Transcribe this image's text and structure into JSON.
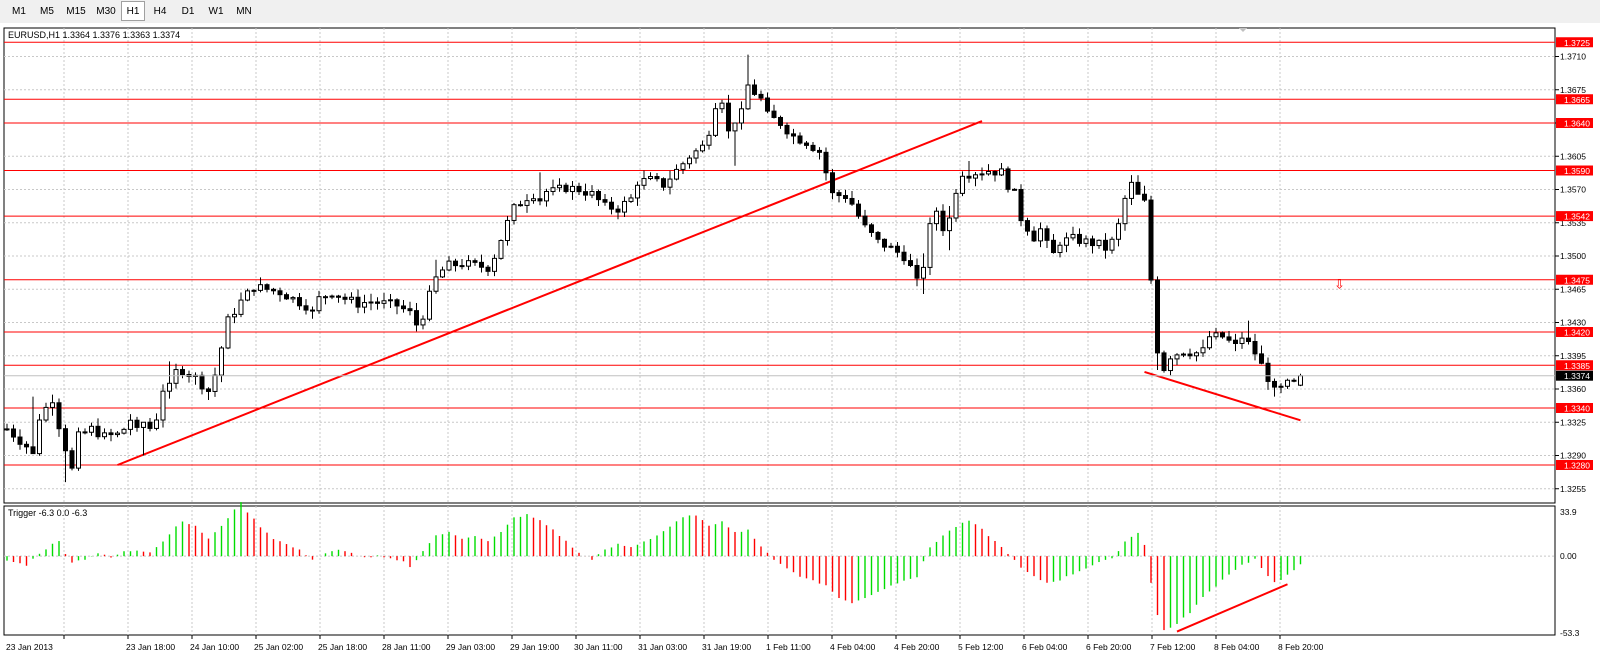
{
  "toolbar": {
    "timeframes": [
      {
        "label": "M1",
        "active": false
      },
      {
        "label": "M5",
        "active": false
      },
      {
        "label": "M15",
        "active": false
      },
      {
        "label": "M30",
        "active": false
      },
      {
        "label": "H1",
        "active": true
      },
      {
        "label": "H4",
        "active": false
      },
      {
        "label": "D1",
        "active": false
      },
      {
        "label": "W1",
        "active": false
      },
      {
        "label": "MN",
        "active": false
      }
    ]
  },
  "chart_data": {
    "type": "candlestick",
    "title": "EURUSD,H1  1.3364 1.3376 1.3363 1.3374",
    "symbol": "EURUSD",
    "timeframe": "H1",
    "ohlc_current": {
      "open": 1.3364,
      "high": 1.3376,
      "low": 1.3363,
      "close": 1.3374
    },
    "current_price": "1.3374",
    "ylim": [
      1.324,
      1.374
    ],
    "price_ticks": [
      "1.3710",
      "1.3675",
      "1.3640",
      "1.3605",
      "1.3570",
      "1.3535",
      "1.3500",
      "1.3465",
      "1.3430",
      "1.3395",
      "1.3360",
      "1.3325",
      "1.3290",
      "1.3255"
    ],
    "x_ticks": [
      "23 Jan 2013",
      "23 Jan 18:00",
      "24 Jan 10:00",
      "25 Jan 02:00",
      "25 Jan 18:00",
      "28 Jan 11:00",
      "29 Jan 03:00",
      "29 Jan 19:00",
      "30 Jan 11:00",
      "31 Jan 03:00",
      "31 Jan 19:00",
      "1 Feb 11:00",
      "4 Feb 04:00",
      "4 Feb 20:00",
      "5 Feb 12:00",
      "6 Feb 04:00",
      "6 Feb 20:00",
      "7 Feb 12:00",
      "8 Feb 04:00",
      "8 Feb 20:00"
    ],
    "price_path": [
      [
        0,
        1.3318
      ],
      [
        3,
        1.33
      ],
      [
        5,
        1.333
      ],
      [
        7,
        1.335
      ],
      [
        8,
        1.3322
      ],
      [
        9,
        1.328
      ],
      [
        10,
        1.3275
      ],
      [
        11,
        1.331
      ],
      [
        13,
        1.3318
      ],
      [
        15,
        1.331
      ],
      [
        17,
        1.3312
      ],
      [
        18,
        1.3318
      ],
      [
        19,
        1.3328
      ],
      [
        20,
        1.3315
      ],
      [
        21,
        1.3308
      ],
      [
        23,
        1.333
      ],
      [
        24,
        1.336
      ],
      [
        25,
        1.3376
      ],
      [
        27,
        1.338
      ],
      [
        29,
        1.3372
      ],
      [
        30,
        1.3365
      ],
      [
        31,
        1.3358
      ],
      [
        32,
        1.3375
      ],
      [
        34,
        1.3432
      ],
      [
        36,
        1.3452
      ],
      [
        38,
        1.3468
      ],
      [
        40,
        1.3465
      ],
      [
        42,
        1.3462
      ],
      [
        44,
        1.3455
      ],
      [
        46,
        1.3448
      ],
      [
        47,
        1.344
      ],
      [
        48,
        1.3455
      ],
      [
        50,
        1.3462
      ],
      [
        52,
        1.3455
      ],
      [
        54,
        1.345
      ],
      [
        56,
        1.3452
      ],
      [
        58,
        1.345
      ],
      [
        60,
        1.3448
      ],
      [
        62,
        1.344
      ],
      [
        63,
        1.3428
      ],
      [
        64,
        1.3438
      ],
      [
        65,
        1.3458
      ],
      [
        66,
        1.348
      ],
      [
        68,
        1.349
      ],
      [
        70,
        1.3492
      ],
      [
        72,
        1.349
      ],
      [
        74,
        1.3488
      ],
      [
        75,
        1.35
      ],
      [
        76,
        1.3518
      ],
      [
        77,
        1.3535
      ],
      [
        78,
        1.355
      ],
      [
        80,
        1.3562
      ],
      [
        82,
        1.3568
      ],
      [
        84,
        1.3568
      ],
      [
        86,
        1.3572
      ],
      [
        88,
        1.357
      ],
      [
        90,
        1.3565
      ],
      [
        92,
        1.3552
      ],
      [
        94,
        1.355
      ],
      [
        96,
        1.356
      ],
      [
        97,
        1.3578
      ],
      [
        99,
        1.358
      ],
      [
        101,
        1.3575
      ],
      [
        103,
        1.359
      ],
      [
        105,
        1.3605
      ],
      [
        107,
        1.3615
      ],
      [
        108,
        1.3632
      ],
      [
        109,
        1.366
      ],
      [
        110,
        1.3665
      ],
      [
        111,
        1.363
      ],
      [
        112,
        1.3618
      ],
      [
        113,
        1.365
      ],
      [
        114,
        1.369
      ],
      [
        115,
        1.3672
      ],
      [
        116,
        1.3665
      ],
      [
        117,
        1.3648
      ],
      [
        119,
        1.364
      ],
      [
        121,
        1.3626
      ],
      [
        123,
        1.362
      ],
      [
        125,
        1.361
      ],
      [
        126,
        1.3588
      ],
      [
        127,
        1.3565
      ],
      [
        129,
        1.3563
      ],
      [
        130,
        1.3555
      ],
      [
        131,
        1.3542
      ],
      [
        132,
        1.353
      ],
      [
        134,
        1.3515
      ],
      [
        136,
        1.3508
      ],
      [
        138,
        1.35
      ],
      [
        139,
        1.3488
      ],
      [
        140,
        1.3472
      ],
      [
        141,
        1.3502
      ],
      [
        142,
        1.353
      ],
      [
        143,
        1.3548
      ],
      [
        144,
        1.353
      ],
      [
        145,
        1.3548
      ],
      [
        146,
        1.357
      ],
      [
        147,
        1.3588
      ],
      [
        149,
        1.3588
      ],
      [
        151,
        1.359
      ],
      [
        153,
        1.3588
      ],
      [
        154,
        1.3575
      ],
      [
        155,
        1.3565
      ],
      [
        156,
        1.354
      ],
      [
        157,
        1.353
      ],
      [
        158,
        1.352
      ],
      [
        159,
        1.3528
      ],
      [
        160,
        1.3512
      ],
      [
        161,
        1.3502
      ],
      [
        162,
        1.3515
      ],
      [
        164,
        1.3518
      ],
      [
        166,
        1.3515
      ],
      [
        168,
        1.3512
      ],
      [
        169,
        1.3508
      ],
      [
        170,
        1.3515
      ],
      [
        171,
        1.3532
      ],
      [
        172,
        1.356
      ],
      [
        173,
        1.3575
      ],
      [
        174,
        1.357
      ],
      [
        175,
        1.3556
      ],
      [
        176,
        1.3475
      ],
      [
        177,
        1.34
      ],
      [
        178,
        1.3382
      ],
      [
        179,
        1.3395
      ],
      [
        181,
        1.34
      ],
      [
        183,
        1.3398
      ],
      [
        184,
        1.34
      ],
      [
        185,
        1.3415
      ],
      [
        187,
        1.3415
      ],
      [
        189,
        1.3405
      ],
      [
        190,
        1.3415
      ],
      [
        191,
        1.342
      ],
      [
        192,
        1.3398
      ],
      [
        193,
        1.3385
      ],
      [
        194,
        1.3372
      ],
      [
        195,
        1.3358
      ],
      [
        196,
        1.336
      ],
      [
        197,
        1.3365
      ],
      [
        198,
        1.3366
      ],
      [
        199,
        1.3374
      ]
    ],
    "spikes": [
      [
        4,
        1.3352,
        1.3292
      ],
      [
        9,
        1.3262,
        1.3295
      ],
      [
        21,
        1.329,
        1.3325
      ],
      [
        25,
        1.3389,
        1.3366
      ],
      [
        66,
        1.3496,
        1.3478
      ],
      [
        82,
        1.3588,
        1.3558
      ],
      [
        112,
        1.3595,
        1.364
      ],
      [
        114,
        1.3712,
        1.368
      ],
      [
        141,
        1.346,
        1.3488
      ],
      [
        145,
        1.3506,
        1.354
      ],
      [
        148,
        1.36,
        1.3582
      ],
      [
        174,
        1.3585,
        1.3565
      ],
      [
        177,
        1.338,
        1.3398
      ],
      [
        191,
        1.3432,
        1.341
      ],
      [
        195,
        1.3352,
        1.3362
      ]
    ],
    "levels": [
      "1.3725",
      "1.3665",
      "1.3640",
      "1.3590",
      "1.3542",
      "1.3475",
      "1.3420",
      "1.3385",
      "1.3340",
      "1.3280"
    ],
    "level_color": "#ff0000",
    "trendlines_price": [
      {
        "from": [
          17,
          1.328
        ],
        "to": [
          150,
          1.3642
        ]
      },
      {
        "from": [
          175,
          1.3378
        ],
        "to": [
          199,
          1.3327
        ]
      }
    ],
    "arrow_marker": {
      "bar": 205,
      "price": 1.347,
      "glyph": "⇩"
    },
    "indicator": {
      "title": "Trigger -6.3 0.0 -6.3",
      "name": "Trigger",
      "values_label": "-6.3 0.0 -6.3",
      "ylim": [
        -53.3,
        33.9
      ],
      "ticks": [
        "33.9",
        "0.00",
        "-53.3"
      ],
      "up_color": "#00dd00",
      "down_color": "#ff0000",
      "curve": [
        [
          0,
          -3
        ],
        [
          3,
          -6
        ],
        [
          5,
          2
        ],
        [
          7,
          8
        ],
        [
          8,
          10
        ],
        [
          9,
          2
        ],
        [
          10,
          -4
        ],
        [
          12,
          -2
        ],
        [
          14,
          2
        ],
        [
          16,
          -1
        ],
        [
          18,
          3
        ],
        [
          20,
          4
        ],
        [
          22,
          3
        ],
        [
          24,
          10
        ],
        [
          26,
          20
        ],
        [
          27,
          24
        ],
        [
          29,
          20
        ],
        [
          31,
          12
        ],
        [
          33,
          20
        ],
        [
          35,
          32
        ],
        [
          36,
          36
        ],
        [
          37,
          30
        ],
        [
          39,
          20
        ],
        [
          41,
          12
        ],
        [
          43,
          8
        ],
        [
          45,
          4
        ],
        [
          47,
          -2
        ],
        [
          49,
          2
        ],
        [
          51,
          4
        ],
        [
          53,
          2
        ],
        [
          55,
          -1
        ],
        [
          57,
          0
        ],
        [
          59,
          -2
        ],
        [
          61,
          -4
        ],
        [
          62,
          -7
        ],
        [
          63,
          -3
        ],
        [
          64,
          4
        ],
        [
          66,
          14
        ],
        [
          68,
          16
        ],
        [
          70,
          12
        ],
        [
          72,
          14
        ],
        [
          74,
          10
        ],
        [
          76,
          16
        ],
        [
          78,
          26
        ],
        [
          80,
          28
        ],
        [
          82,
          24
        ],
        [
          84,
          18
        ],
        [
          86,
          10
        ],
        [
          88,
          2
        ],
        [
          90,
          -2
        ],
        [
          92,
          4
        ],
        [
          94,
          8
        ],
        [
          96,
          6
        ],
        [
          98,
          10
        ],
        [
          100,
          14
        ],
        [
          102,
          20
        ],
        [
          104,
          26
        ],
        [
          106,
          28
        ],
        [
          108,
          20
        ],
        [
          110,
          24
        ],
        [
          112,
          16
        ],
        [
          114,
          18
        ],
        [
          116,
          6
        ],
        [
          118,
          -2
        ],
        [
          120,
          -8
        ],
        [
          122,
          -14
        ],
        [
          124,
          -16
        ],
        [
          126,
          -20
        ],
        [
          128,
          -28
        ],
        [
          130,
          -32
        ],
        [
          132,
          -28
        ],
        [
          134,
          -24
        ],
        [
          136,
          -20
        ],
        [
          138,
          -16
        ],
        [
          140,
          -14
        ],
        [
          142,
          6
        ],
        [
          144,
          14
        ],
        [
          146,
          20
        ],
        [
          148,
          24
        ],
        [
          150,
          18
        ],
        [
          152,
          10
        ],
        [
          154,
          2
        ],
        [
          156,
          -8
        ],
        [
          158,
          -14
        ],
        [
          160,
          -18
        ],
        [
          162,
          -16
        ],
        [
          164,
          -12
        ],
        [
          166,
          -8
        ],
        [
          168,
          -4
        ],
        [
          170,
          -2
        ],
        [
          172,
          10
        ],
        [
          174,
          16
        ],
        [
          175,
          8
        ],
        [
          176,
          -18
        ],
        [
          177,
          -40
        ],
        [
          178,
          -50
        ],
        [
          180,
          -46
        ],
        [
          182,
          -38
        ],
        [
          184,
          -28
        ],
        [
          186,
          -20
        ],
        [
          188,
          -12
        ],
        [
          190,
          -6
        ],
        [
          192,
          -2
        ],
        [
          193,
          -8
        ],
        [
          194,
          -14
        ],
        [
          195,
          -18
        ],
        [
          196,
          -16
        ],
        [
          197,
          -12
        ],
        [
          198,
          -9
        ],
        [
          199,
          -6
        ]
      ],
      "trendline": {
        "from": [
          180,
          -51
        ],
        "to": [
          197,
          -19
        ]
      }
    }
  }
}
